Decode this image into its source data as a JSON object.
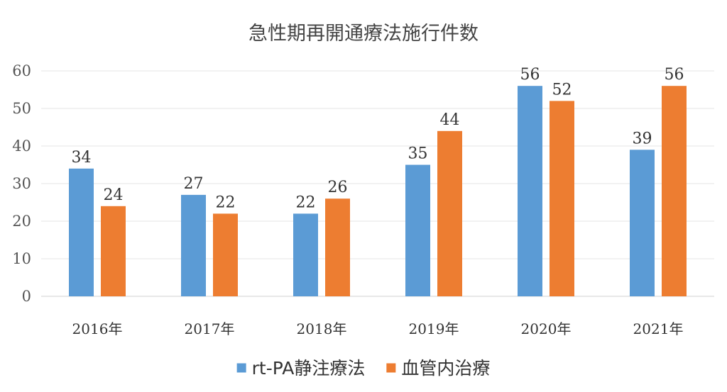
{
  "chart_data": {
    "type": "bar",
    "title": "急性期再開通療法施行件数",
    "categories": [
      "2016年",
      "2017年",
      "2018年",
      "2019年",
      "2020年",
      "2021年"
    ],
    "series": [
      {
        "name": "rt-PA静注療法",
        "color": "#5B9BD5",
        "values": [
          34,
          27,
          22,
          35,
          56,
          39
        ]
      },
      {
        "name": "血管内治療",
        "color": "#ED7D31",
        "values": [
          24,
          22,
          26,
          44,
          52,
          56
        ]
      }
    ],
    "ylim": [
      0,
      60
    ],
    "yticks": [
      0,
      10,
      20,
      30,
      40,
      50,
      60
    ],
    "grid": true,
    "legend_position": "bottom",
    "data_labels": true
  }
}
